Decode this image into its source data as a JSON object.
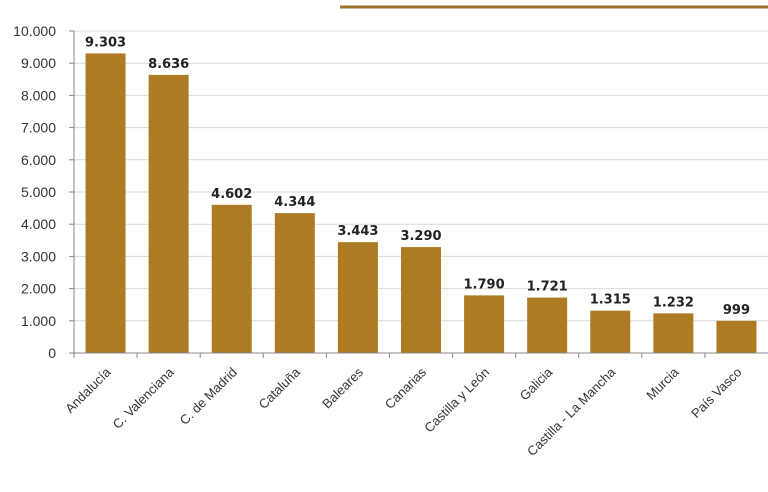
{
  "chart_data": {
    "type": "bar",
    "categories": [
      "Andalucía",
      "C. Valenciana",
      "C. de Madrid",
      "Cataluña",
      "Baleares",
      "Canarias",
      "Castilla y León",
      "Galicia",
      "Castilla - La Mancha",
      "Murcia",
      "País Vasco"
    ],
    "values": [
      9303,
      8636,
      4602,
      4344,
      3443,
      3290,
      1790,
      1721,
      1315,
      1232,
      999
    ],
    "value_labels": [
      "9.303",
      "8.636",
      "4.602",
      "4.344",
      "3.443",
      "3.290",
      "1.790",
      "1.721",
      "1.315",
      "1.232",
      "999"
    ],
    "yticks": [
      0,
      1000,
      2000,
      3000,
      4000,
      5000,
      6000,
      7000,
      8000,
      9000,
      10000
    ],
    "ytick_labels": [
      "0",
      "1.000",
      "2.000",
      "3.000",
      "4.000",
      "5.000",
      "6.000",
      "7.000",
      "8.000",
      "9.000",
      "10.000"
    ],
    "ylim": [
      0,
      10000
    ],
    "grid": true,
    "bar_color": "#ad7b24",
    "accent_line_color": "#9a7230"
  }
}
